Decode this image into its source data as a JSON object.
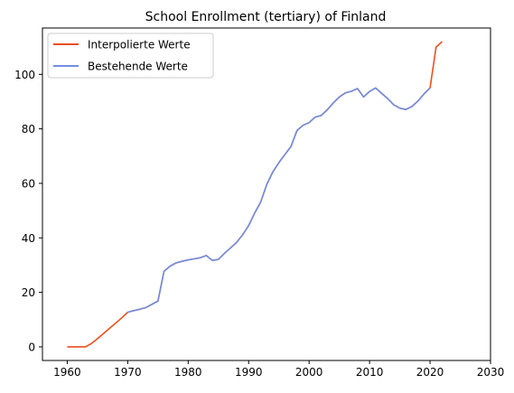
{
  "chart_data": {
    "type": "line",
    "title": "School Enrollment (tertiary) of Finland",
    "xlabel": "",
    "ylabel": "",
    "xlim": [
      1955.9,
      2030
    ],
    "ylim": [
      -5,
      117
    ],
    "x_ticks": [
      1960,
      1970,
      1980,
      1990,
      2000,
      2010,
      2020,
      2030
    ],
    "y_ticks": [
      0,
      20,
      40,
      60,
      80,
      100
    ],
    "grid": false,
    "legend_position": "top-left",
    "series": [
      {
        "name": "Interpolierte Werte",
        "color": "#e8501e",
        "points": [
          [
            1960,
            0
          ],
          [
            1961,
            0
          ],
          [
            1962,
            0
          ],
          [
            1963,
            0
          ],
          [
            1964,
            1.2
          ],
          [
            1965,
            3
          ],
          [
            1966,
            4.9
          ],
          [
            1967,
            6.8
          ],
          [
            1968,
            8.7
          ],
          [
            1969,
            10.6
          ],
          [
            1970,
            12.7
          ],
          [
            1971,
            13.3
          ],
          [
            1972,
            13.8
          ],
          [
            1973,
            14.4
          ],
          [
            1974,
            15.6
          ],
          [
            1975,
            16.8
          ],
          [
            1976,
            27.7
          ],
          [
            1977,
            29.6
          ],
          [
            1978,
            30.8
          ],
          [
            1979,
            31.4
          ],
          [
            1980,
            31.9
          ],
          [
            1981,
            32.3
          ],
          [
            1982,
            32.7
          ],
          [
            1983,
            33.5
          ],
          [
            1984,
            31.7
          ],
          [
            1985,
            32.1
          ],
          [
            1986,
            34.3
          ],
          [
            1987,
            36.3
          ],
          [
            1988,
            38.3
          ],
          [
            1989,
            41.1
          ],
          [
            1990,
            44.5
          ],
          [
            1991,
            49.1
          ],
          [
            1992,
            53.2
          ],
          [
            1993,
            59.6
          ],
          [
            1994,
            64.2
          ],
          [
            1995,
            67.6
          ],
          [
            1996,
            70.6
          ],
          [
            1997,
            73.5
          ],
          [
            1998,
            79.4
          ],
          [
            1999,
            81.3
          ],
          [
            2000,
            82.3
          ],
          [
            2001,
            84.3
          ],
          [
            2002,
            84.9
          ],
          [
            2003,
            87
          ],
          [
            2004,
            89.5
          ],
          [
            2005,
            91.7
          ],
          [
            2006,
            93.2
          ],
          [
            2007,
            93.8
          ],
          [
            2008,
            94.8
          ],
          [
            2009,
            91.7
          ],
          [
            2010,
            93.7
          ],
          [
            2011,
            95
          ],
          [
            2012,
            93
          ],
          [
            2013,
            91.1
          ],
          [
            2014,
            88.8
          ],
          [
            2015,
            87.6
          ],
          [
            2016,
            87.1
          ],
          [
            2017,
            88.2
          ],
          [
            2018,
            90.2
          ],
          [
            2019,
            92.8
          ],
          [
            2020,
            95
          ],
          [
            2021,
            110
          ],
          [
            2022,
            112
          ]
        ]
      },
      {
        "name": "Bestehende Werte",
        "color": "#6f8fe0",
        "points": [
          [
            1970,
            12.7
          ],
          [
            1971,
            13.3
          ],
          [
            1972,
            13.8
          ],
          [
            1973,
            14.4
          ],
          [
            1974,
            15.6
          ],
          [
            1975,
            16.8
          ],
          [
            1976,
            27.7
          ],
          [
            1977,
            29.6
          ],
          [
            1978,
            30.8
          ],
          [
            1979,
            31.4
          ],
          [
            1980,
            31.9
          ],
          [
            1981,
            32.3
          ],
          [
            1982,
            32.7
          ],
          [
            1983,
            33.5
          ],
          [
            1984,
            31.7
          ],
          [
            1985,
            32.1
          ],
          [
            1986,
            34.3
          ],
          [
            1987,
            36.3
          ],
          [
            1988,
            38.3
          ],
          [
            1989,
            41.1
          ],
          [
            1990,
            44.5
          ],
          [
            1991,
            49.1
          ],
          [
            1992,
            53.2
          ],
          [
            1993,
            59.6
          ],
          [
            1994,
            64.2
          ],
          [
            1995,
            67.6
          ],
          [
            1996,
            70.6
          ],
          [
            1997,
            73.5
          ],
          [
            1998,
            79.4
          ],
          [
            1999,
            81.3
          ],
          [
            2000,
            82.3
          ],
          [
            2001,
            84.3
          ],
          [
            2002,
            84.9
          ],
          [
            2003,
            87
          ],
          [
            2004,
            89.5
          ],
          [
            2005,
            91.7
          ],
          [
            2006,
            93.2
          ],
          [
            2007,
            93.8
          ],
          [
            2008,
            94.8
          ],
          [
            2009,
            91.7
          ],
          [
            2010,
            93.7
          ],
          [
            2011,
            95
          ],
          [
            2012,
            93
          ],
          [
            2013,
            91.1
          ],
          [
            2014,
            88.8
          ],
          [
            2015,
            87.6
          ],
          [
            2016,
            87.1
          ],
          [
            2017,
            88.2
          ],
          [
            2018,
            90.2
          ],
          [
            2019,
            92.8
          ],
          [
            2020,
            95
          ]
        ]
      }
    ]
  }
}
